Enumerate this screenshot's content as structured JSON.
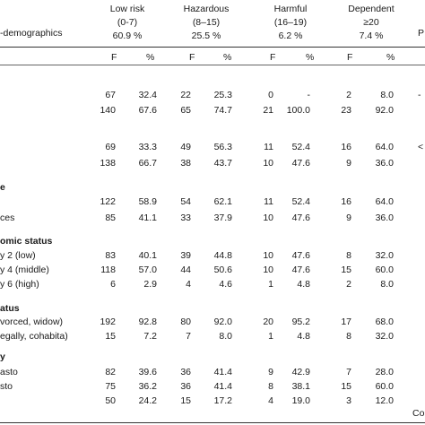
{
  "header": {
    "title": "-demographics",
    "groups": [
      {
        "name": "Low risk",
        "range": "(0-7)",
        "pct": "60.9 %"
      },
      {
        "name": "Hazardous",
        "range": "(8–15)",
        "pct": "25.5 %"
      },
      {
        "name": "Harmful",
        "range": "(16–19)",
        "pct": "6.2 %"
      },
      {
        "name": "Dependent",
        "range": "≥20",
        "pct": "7.4 %"
      }
    ],
    "right_edge": "P",
    "f_label": "F",
    "pct_label": "%"
  },
  "sections": [
    {
      "label": "",
      "rows": [
        {
          "label": "",
          "v": [
            "67",
            "32.4",
            "22",
            "25.3",
            "0",
            "-",
            "2",
            "8.0"
          ],
          "tail": "-"
        },
        {
          "label": "",
          "v": [
            "140",
            "67.6",
            "65",
            "74.7",
            "21",
            "100.0",
            "23",
            "92.0"
          ],
          "tail": ""
        }
      ]
    },
    {
      "label": "",
      "rows": [
        {
          "label": "",
          "v": [
            "69",
            "33.3",
            "49",
            "56.3",
            "11",
            "52.4",
            "16",
            "64.0"
          ],
          "tail": "<"
        },
        {
          "label": "",
          "v": [
            "138",
            "66.7",
            "38",
            "43.7",
            "10",
            "47.6",
            "9",
            "36.0"
          ],
          "tail": ""
        }
      ]
    },
    {
      "label": "e",
      "rows": [
        {
          "label": "",
          "v": [
            "122",
            "58.9",
            "54",
            "62.1",
            "11",
            "52.4",
            "16",
            "64.0"
          ],
          "tail": ""
        },
        {
          "label": "ces",
          "v": [
            "85",
            "41.1",
            "33",
            "37.9",
            "10",
            "47.6",
            "9",
            "36.0"
          ],
          "tail": ""
        }
      ]
    },
    {
      "label": "omic status",
      "rows": [
        {
          "label": "y 2 (low)",
          "v": [
            "83",
            "40.1",
            "39",
            "44.8",
            "10",
            "47.6",
            "8",
            "32.0"
          ],
          "tail": ""
        },
        {
          "label": "y 4 (middle)",
          "v": [
            "118",
            "57.0",
            "44",
            "50.6",
            "10",
            "47.6",
            "15",
            "60.0"
          ],
          "tail": ""
        },
        {
          "label": "y 6 (high)",
          "v": [
            "6",
            "2.9",
            "4",
            "4.6",
            "1",
            "4.8",
            "2",
            "8.0"
          ],
          "tail": ""
        }
      ]
    },
    {
      "label": "atus",
      "rows": [
        {
          "label": "vorced, widow)",
          "v": [
            "192",
            "92.8",
            "80",
            "92.0",
            "20",
            "95.2",
            "17",
            "68.0"
          ],
          "tail": ""
        },
        {
          "label": "egally, cohabita)",
          "v": [
            "15",
            "7.2",
            "7",
            "8.0",
            "1",
            "4.8",
            "8",
            "32.0"
          ],
          "tail": ""
        }
      ]
    },
    {
      "label": "y",
      "rows": [
        {
          "label": "asto",
          "v": [
            "82",
            "39.6",
            "36",
            "41.4",
            "9",
            "42.9",
            "7",
            "28.0"
          ],
          "tail": ""
        },
        {
          "label": "sto",
          "v": [
            "75",
            "36.2",
            "36",
            "41.4",
            "8",
            "38.1",
            "15",
            "60.0"
          ],
          "tail": ""
        },
        {
          "label": "",
          "v": [
            "50",
            "24.2",
            "15",
            "17.2",
            "4",
            "19.0",
            "3",
            "12.0"
          ],
          "tail": ""
        }
      ]
    }
  ],
  "footer_right": "Co"
}
